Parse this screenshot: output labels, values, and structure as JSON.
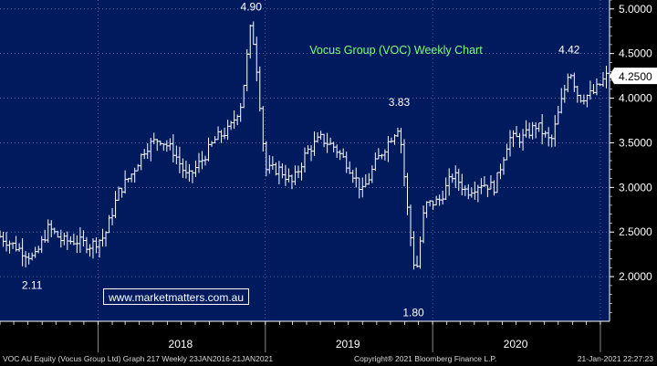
{
  "chart_data": {
    "type": "candlestick-bar",
    "title": "Vocus Group (VOC) Weekly Chart",
    "title_color": "#7CFC7C",
    "background": "#001a5e",
    "bar_color": "#ffffff",
    "y_axis": {
      "position": "right",
      "ylim": [
        1.5,
        5.1
      ],
      "ticks": [
        {
          "value": 2.0,
          "label": "2.0000"
        },
        {
          "value": 2.5,
          "label": "2.5000"
        },
        {
          "value": 3.0,
          "label": "3.0000"
        },
        {
          "value": 3.5,
          "label": "3.5000"
        },
        {
          "value": 4.0,
          "label": "4.0000"
        },
        {
          "value": 4.5,
          "label": "4.5000"
        },
        {
          "value": 5.0,
          "label": "5.0000"
        }
      ],
      "last_price": {
        "value": 4.25,
        "label": "4.2500"
      }
    },
    "x_axis": {
      "range": [
        "2016-01-23",
        "2021-01-21"
      ],
      "year_labels": [
        {
          "label": "2018",
          "date": "2018-06-30"
        },
        {
          "label": "2019",
          "date": "2019-06-30"
        },
        {
          "label": "2020",
          "date": "2020-06-30"
        }
      ],
      "year_separators": [
        "2018-01-01",
        "2019-01-01",
        "2020-01-01",
        "2021-01-01"
      ]
    },
    "grid": {
      "horizontal": true,
      "vertical": true,
      "style": "dotted"
    },
    "annotations": [
      {
        "text": "4.90",
        "date": "2018-12-01",
        "value": 4.9
      },
      {
        "text": "3.83",
        "date": "2019-10-20",
        "value": 3.83
      },
      {
        "text": "4.42",
        "date": "2020-10-25",
        "value": 4.42
      },
      {
        "text": "2.11",
        "date": "2017-08-10",
        "value": 2.11
      },
      {
        "text": "1.80",
        "date": "2019-11-20",
        "value": 1.8
      }
    ],
    "weekly_close_path": [
      [
        "2017-06-01",
        2.45
      ],
      [
        "2017-07-01",
        2.35
      ],
      [
        "2017-08-15",
        2.2
      ],
      [
        "2017-09-15",
        2.55
      ],
      [
        "2017-10-15",
        2.4
      ],
      [
        "2017-11-15",
        2.4
      ],
      [
        "2017-12-15",
        2.35
      ],
      [
        "2018-01-15",
        2.45
      ],
      [
        "2018-02-15",
        2.95
      ],
      [
        "2018-03-15",
        3.15
      ],
      [
        "2018-04-15",
        3.45
      ],
      [
        "2018-05-15",
        3.55
      ],
      [
        "2018-06-15",
        3.4
      ],
      [
        "2018-07-15",
        3.1
      ],
      [
        "2018-08-15",
        3.3
      ],
      [
        "2018-09-15",
        3.55
      ],
      [
        "2018-10-15",
        3.65
      ],
      [
        "2018-11-10",
        3.95
      ],
      [
        "2018-12-01",
        4.85
      ],
      [
        "2018-12-15",
        4.25
      ],
      [
        "2019-01-01",
        3.2
      ],
      [
        "2019-02-01",
        3.2
      ],
      [
        "2019-03-01",
        3.05
      ],
      [
        "2019-04-01",
        3.4
      ],
      [
        "2019-05-01",
        3.55
      ],
      [
        "2019-06-01",
        3.45
      ],
      [
        "2019-07-01",
        3.25
      ],
      [
        "2019-08-01",
        2.95
      ],
      [
        "2019-09-01",
        3.3
      ],
      [
        "2019-10-01",
        3.55
      ],
      [
        "2019-10-20",
        3.7
      ],
      [
        "2019-11-10",
        2.6
      ],
      [
        "2019-11-25",
        2.0
      ],
      [
        "2019-12-15",
        2.8
      ],
      [
        "2020-01-15",
        2.85
      ],
      [
        "2020-02-15",
        3.15
      ],
      [
        "2020-03-15",
        2.95
      ],
      [
        "2020-04-15",
        3.05
      ],
      [
        "2020-05-15",
        3.0
      ],
      [
        "2020-06-15",
        3.55
      ],
      [
        "2020-07-15",
        3.55
      ],
      [
        "2020-08-15",
        3.7
      ],
      [
        "2020-09-15",
        3.5
      ],
      [
        "2020-10-15",
        4.1
      ],
      [
        "2020-10-25",
        4.35
      ],
      [
        "2020-11-15",
        4.0
      ],
      [
        "2020-12-15",
        4.05
      ],
      [
        "2021-01-15",
        4.25
      ]
    ]
  },
  "watermark": "www.marketmatters.com.au",
  "footer": {
    "left": "VOC AU Equity (Vocus Group Ltd) Graph 217  Weekly 23JAN2016-21JAN2021",
    "center": "Copyright® 2021 Bloomberg Finance L.P.",
    "right": "21-Jan-2021 22:27:23"
  }
}
